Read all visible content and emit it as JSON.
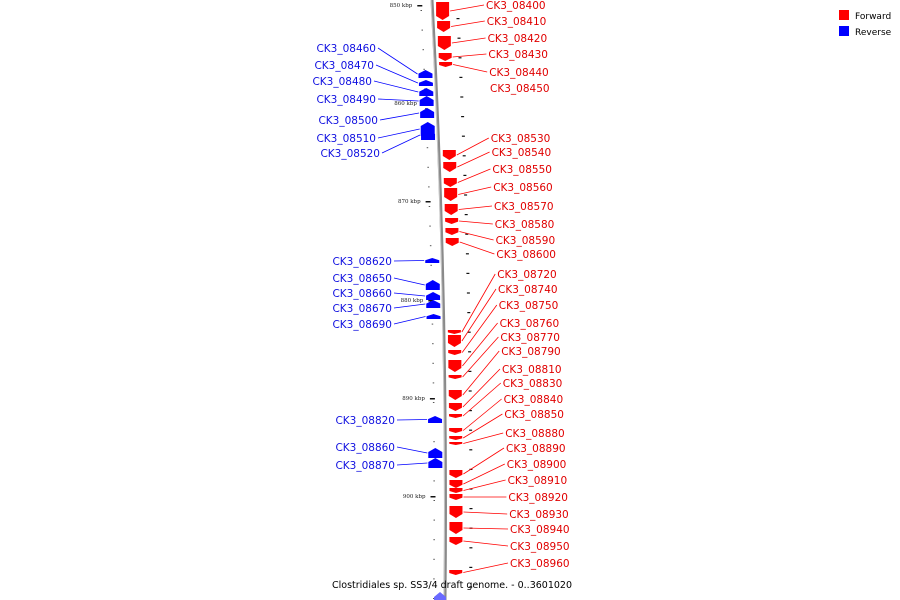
{
  "caption": "Clostridiales sp. SS3/4 draft genome. - 0..3601020",
  "legend": [
    {
      "label": "Forward",
      "color": "#ff0000"
    },
    {
      "label": "Reverse",
      "color": "#0000ff"
    }
  ],
  "colors": {
    "forward": "#ff0000",
    "reverse": "#0000ff",
    "forward_label": "#e00000",
    "reverse_label": "#1010e0",
    "axis": "#888888"
  },
  "kbp_ticks": [
    "850 kbp",
    "860 kbp",
    "870 kbp",
    "880 kbp",
    "890 kbp",
    "900 kbp"
  ],
  "forward_genes": [
    "CK3_08400",
    "CK3_08410",
    "CK3_08420",
    "CK3_08430",
    "CK3_08440",
    "CK3_08450",
    "CK3_08530",
    "CK3_08540",
    "CK3_08550",
    "CK3_08560",
    "CK3_08570",
    "CK3_08580",
    "CK3_08590",
    "CK3_08600",
    "CK3_08720",
    "CK3_08740",
    "CK3_08750",
    "CK3_08760",
    "CK3_08770",
    "CK3_08790",
    "CK3_08810",
    "CK3_08830",
    "CK3_08840",
    "CK3_08850",
    "CK3_08880",
    "CK3_08890",
    "CK3_08900",
    "CK3_08910",
    "CK3_08920",
    "CK3_08930",
    "CK3_08940",
    "CK3_08950",
    "CK3_08960"
  ],
  "reverse_genes": [
    "CK3_08460",
    "CK3_08470",
    "CK3_08480",
    "CK3_08490",
    "CK3_08500",
    "CK3_08510",
    "CK3_08520",
    "CK3_08620",
    "CK3_08650",
    "CK3_08660",
    "CK3_08670",
    "CK3_08690",
    "CK3_08820",
    "CK3_08860",
    "CK3_08870"
  ]
}
